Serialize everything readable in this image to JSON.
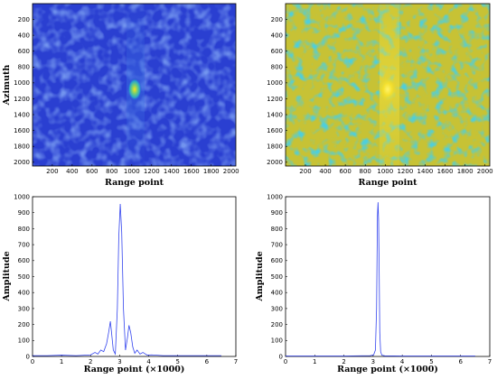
{
  "chart_data": [
    {
      "type": "heatmap",
      "panel": "top-left",
      "xlabel": "Range point",
      "ylabel": "Azimuth",
      "xlim": [
        1,
        2048
      ],
      "ylim": [
        1,
        2048
      ],
      "y_reversed": true,
      "xticks": [
        "200",
        "400",
        "600",
        "800",
        "1000",
        "1200",
        "1400",
        "1600",
        "1800",
        "2000"
      ],
      "yticks": [
        "200",
        "400",
        "600",
        "800",
        "1000",
        "1200",
        "1400",
        "1600",
        "1800",
        "2000"
      ],
      "colormap": "parula",
      "scale": "linear",
      "background_color": "#2a3fd1",
      "target": {
        "x": 1000,
        "y": 1040
      },
      "colors": {
        "low": "#2233c8",
        "mid": "#13b4bc",
        "high": "#f9e21b"
      }
    },
    {
      "type": "heatmap",
      "panel": "top-right",
      "xlabel": "Range point",
      "ylabel": "",
      "xlim": [
        1,
        2048
      ],
      "ylim": [
        1,
        2048
      ],
      "y_reversed": true,
      "xticks": [
        "200",
        "400",
        "600",
        "800",
        "1000",
        "1200",
        "1400",
        "1600",
        "1800",
        "2000"
      ],
      "yticks": [
        "200",
        "400",
        "600",
        "800",
        "1000",
        "1200",
        "1400",
        "1600",
        "1800",
        "2000"
      ],
      "colormap": "parula",
      "scale": "log",
      "background_color": "#c7c235",
      "target": {
        "x": 1000,
        "y": 1040
      },
      "colors": {
        "low": "#12a6b8",
        "mid": "#c9c437",
        "high": "#f9e21b"
      }
    },
    {
      "type": "line",
      "panel": "bottom-left",
      "xlabel": "Range point (×1000)",
      "ylabel": "Amplitude",
      "xlim": [
        0,
        7
      ],
      "ylim": [
        0,
        1000
      ],
      "xticks": [
        "0",
        "1",
        "2",
        "3",
        "4",
        "5",
        "6",
        "7"
      ],
      "yticks": [
        "0",
        "100",
        "200",
        "300",
        "400",
        "500",
        "600",
        "700",
        "800",
        "900",
        "1000"
      ],
      "line_color": "#3344ee",
      "series": [
        {
          "x": [
            0,
            0.5,
            1.0,
            1.5,
            2.0,
            2.15,
            2.25,
            2.35,
            2.45,
            2.55,
            2.62,
            2.68,
            2.72,
            2.78,
            2.85,
            2.92,
            2.97,
            3.02,
            3.07,
            3.13,
            3.2,
            3.27,
            3.32,
            3.38,
            3.45,
            3.52,
            3.6,
            3.7,
            3.8,
            3.95,
            4.1,
            4.5,
            5.0,
            6.0,
            6.5
          ],
          "y": [
            5,
            5,
            8,
            5,
            10,
            25,
            15,
            40,
            30,
            80,
            150,
            220,
            150,
            40,
            15,
            300,
            750,
            955,
            780,
            300,
            40,
            120,
            195,
            150,
            60,
            20,
            40,
            15,
            25,
            8,
            10,
            5,
            5,
            5,
            5
          ]
        }
      ]
    },
    {
      "type": "line",
      "panel": "bottom-right",
      "xlabel": "Range point (×1000)",
      "ylabel": "Amplitude",
      "xlim": [
        0,
        7
      ],
      "ylim": [
        0,
        1000
      ],
      "xticks": [
        "0",
        "1",
        "2",
        "3",
        "4",
        "5",
        "6",
        "7"
      ],
      "yticks": [
        "0",
        "100",
        "200",
        "300",
        "400",
        "500",
        "600",
        "700",
        "800",
        "900",
        "1000"
      ],
      "line_color": "#3344ee",
      "series": [
        {
          "x": [
            0,
            1.0,
            2.0,
            2.9,
            3.02,
            3.08,
            3.12,
            3.15,
            3.17,
            3.19,
            3.21,
            3.23,
            3.26,
            3.3,
            3.4,
            4.0,
            5.0,
            6.0,
            6.5
          ],
          "y": [
            3,
            3,
            3,
            5,
            10,
            40,
            300,
            880,
            965,
            850,
            520,
            150,
            30,
            8,
            4,
            3,
            3,
            3,
            3
          ]
        }
      ]
    }
  ]
}
